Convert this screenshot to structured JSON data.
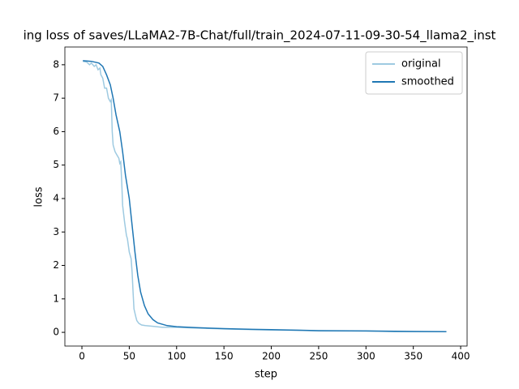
{
  "chart_data": {
    "type": "line",
    "title": "ing loss of saves/LLaMA2-7B-Chat/full/train_2024-07-11-09-30-54_llama2_inst",
    "xlabel": "step",
    "ylabel": "loss",
    "xlim": [
      -18,
      406.8
    ],
    "ylim": [
      -0.41,
      8.53
    ],
    "xticks": [
      0,
      50,
      100,
      150,
      200,
      250,
      300,
      350,
      400
    ],
    "yticks": [
      0,
      1,
      2,
      3,
      4,
      5,
      6,
      7,
      8
    ],
    "legend": "upper right",
    "series": [
      {
        "name": "original",
        "color": "#9ecae1",
        "x": [
          1,
          5,
          8,
          10,
          13,
          15,
          17,
          19,
          20,
          22,
          24,
          26,
          28,
          30,
          31,
          32,
          33,
          35,
          37,
          39,
          40,
          41,
          42,
          43,
          45,
          47,
          48,
          50,
          52,
          53,
          54,
          55,
          57,
          58,
          60,
          63,
          67,
          75,
          85,
          100,
          120,
          150,
          180,
          200,
          230,
          250,
          280,
          300,
          330,
          360,
          385
        ],
        "values": [
          8.1,
          8.08,
          8.0,
          8.05,
          7.95,
          8.0,
          7.85,
          7.9,
          7.7,
          7.6,
          7.3,
          7.3,
          7.0,
          6.9,
          6.95,
          6.0,
          5.6,
          5.4,
          5.3,
          5.2,
          5.05,
          5.1,
          4.5,
          3.8,
          3.3,
          2.9,
          2.8,
          2.4,
          2.2,
          1.8,
          1.2,
          0.7,
          0.45,
          0.35,
          0.27,
          0.22,
          0.2,
          0.18,
          0.15,
          0.15,
          0.13,
          0.1,
          0.08,
          0.07,
          0.06,
          0.04,
          0.04,
          0.04,
          0.02,
          0.02,
          0.02
        ]
      },
      {
        "name": "smoothed",
        "color": "#1f77b4",
        "x": [
          1,
          10,
          18,
          22,
          26,
          30,
          33,
          36,
          40,
          43,
          46,
          50,
          53,
          56,
          59,
          62,
          66,
          70,
          75,
          80,
          90,
          100,
          120,
          150,
          180,
          200,
          250,
          300,
          330,
          385
        ],
        "values": [
          8.12,
          8.1,
          8.05,
          7.95,
          7.7,
          7.4,
          7.0,
          6.5,
          6.0,
          5.4,
          4.7,
          4.0,
          3.2,
          2.4,
          1.7,
          1.2,
          0.8,
          0.55,
          0.38,
          0.28,
          0.2,
          0.17,
          0.14,
          0.11,
          0.09,
          0.08,
          0.05,
          0.04,
          0.03,
          0.02
        ]
      }
    ]
  }
}
